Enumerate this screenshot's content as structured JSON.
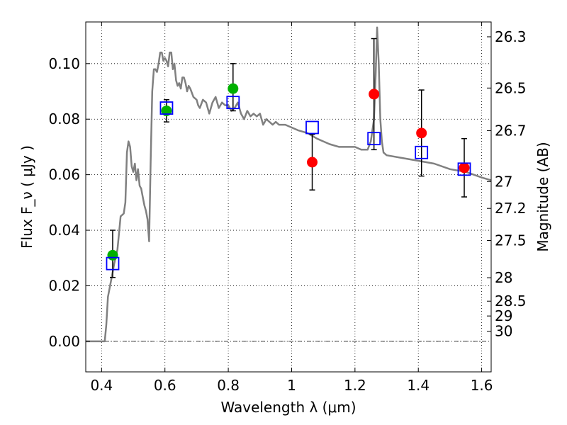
{
  "chart_data": {
    "type": "scatter",
    "xlabel": "Wavelength  λ (μm)",
    "ylabel": "Flux  F_ν  ( μJy )",
    "ylabel_right": "Magnitude (AB)",
    "xlim": [
      0.35,
      1.63
    ],
    "ylim": [
      -0.011,
      0.115
    ],
    "grid": true,
    "x_ticks": [
      {
        "value": 0.4,
        "label": "0.4"
      },
      {
        "value": 0.6,
        "label": "0.6"
      },
      {
        "value": 0.8,
        "label": "0.8"
      },
      {
        "value": 1.0,
        "label": "1"
      },
      {
        "value": 1.2,
        "label": "1.2"
      },
      {
        "value": 1.4,
        "label": "1.4"
      },
      {
        "value": 1.6,
        "label": "1.6"
      }
    ],
    "y_ticks": [
      {
        "value": 0.0,
        "label": "0.00"
      },
      {
        "value": 0.02,
        "label": "0.02"
      },
      {
        "value": 0.04,
        "label": "0.04"
      },
      {
        "value": 0.06,
        "label": "0.06"
      },
      {
        "value": 0.08,
        "label": "0.08"
      },
      {
        "value": 0.1,
        "label": "0.10"
      }
    ],
    "magnitude_ticks": [
      {
        "mag": 26.3,
        "label": "26.3"
      },
      {
        "mag": 26.5,
        "label": "26.5"
      },
      {
        "mag": 26.7,
        "label": "26.7"
      },
      {
        "mag": 27.0,
        "label": "27"
      },
      {
        "mag": 27.2,
        "label": "27.2"
      },
      {
        "mag": 27.5,
        "label": "27.5"
      },
      {
        "mag": 28.0,
        "label": "28"
      },
      {
        "mag": 28.5,
        "label": "28.5"
      },
      {
        "mag": 29.0,
        "label": "29"
      },
      {
        "mag": 30.0,
        "label": "30"
      }
    ],
    "model_spectrum": {
      "color": "#808080",
      "points": [
        [
          0.35,
          0.0
        ],
        [
          0.41,
          0.0
        ],
        [
          0.415,
          0.006
        ],
        [
          0.42,
          0.016
        ],
        [
          0.43,
          0.022
        ],
        [
          0.44,
          0.028
        ],
        [
          0.45,
          0.033
        ],
        [
          0.46,
          0.045
        ],
        [
          0.47,
          0.046
        ],
        [
          0.475,
          0.05
        ],
        [
          0.48,
          0.068
        ],
        [
          0.485,
          0.072
        ],
        [
          0.49,
          0.07
        ],
        [
          0.495,
          0.063
        ],
        [
          0.5,
          0.061
        ],
        [
          0.505,
          0.064
        ],
        [
          0.51,
          0.058
        ],
        [
          0.515,
          0.062
        ],
        [
          0.52,
          0.056
        ],
        [
          0.525,
          0.055
        ],
        [
          0.53,
          0.052
        ],
        [
          0.535,
          0.049
        ],
        [
          0.54,
          0.047
        ],
        [
          0.545,
          0.044
        ],
        [
          0.55,
          0.036
        ],
        [
          0.555,
          0.065
        ],
        [
          0.56,
          0.09
        ],
        [
          0.565,
          0.098
        ],
        [
          0.57,
          0.098
        ],
        [
          0.575,
          0.097
        ],
        [
          0.58,
          0.1
        ],
        [
          0.585,
          0.104
        ],
        [
          0.59,
          0.104
        ],
        [
          0.595,
          0.101
        ],
        [
          0.6,
          0.102
        ],
        [
          0.605,
          0.101
        ],
        [
          0.61,
          0.099
        ],
        [
          0.615,
          0.104
        ],
        [
          0.62,
          0.104
        ],
        [
          0.625,
          0.098
        ],
        [
          0.63,
          0.1
        ],
        [
          0.635,
          0.094
        ],
        [
          0.64,
          0.092
        ],
        [
          0.645,
          0.093
        ],
        [
          0.65,
          0.091
        ],
        [
          0.655,
          0.095
        ],
        [
          0.66,
          0.095
        ],
        [
          0.665,
          0.093
        ],
        [
          0.67,
          0.09
        ],
        [
          0.675,
          0.092
        ],
        [
          0.68,
          0.091
        ],
        [
          0.69,
          0.088
        ],
        [
          0.7,
          0.087
        ],
        [
          0.705,
          0.085
        ],
        [
          0.71,
          0.084
        ],
        [
          0.72,
          0.087
        ],
        [
          0.73,
          0.086
        ],
        [
          0.74,
          0.082
        ],
        [
          0.75,
          0.086
        ],
        [
          0.76,
          0.088
        ],
        [
          0.77,
          0.084
        ],
        [
          0.78,
          0.086
        ],
        [
          0.79,
          0.085
        ],
        [
          0.8,
          0.085
        ],
        [
          0.81,
          0.083
        ],
        [
          0.82,
          0.084
        ],
        [
          0.83,
          0.086
        ],
        [
          0.84,
          0.082
        ],
        [
          0.85,
          0.08
        ],
        [
          0.86,
          0.083
        ],
        [
          0.87,
          0.081
        ],
        [
          0.88,
          0.082
        ],
        [
          0.89,
          0.081
        ],
        [
          0.9,
          0.082
        ],
        [
          0.91,
          0.078
        ],
        [
          0.92,
          0.08
        ],
        [
          0.93,
          0.079
        ],
        [
          0.94,
          0.078
        ],
        [
          0.95,
          0.079
        ],
        [
          0.96,
          0.078
        ],
        [
          0.98,
          0.078
        ],
        [
          1.0,
          0.077
        ],
        [
          1.02,
          0.076
        ],
        [
          1.05,
          0.075
        ],
        [
          1.08,
          0.073
        ],
        [
          1.1,
          0.072
        ],
        [
          1.12,
          0.071
        ],
        [
          1.15,
          0.07
        ],
        [
          1.18,
          0.07
        ],
        [
          1.2,
          0.07
        ],
        [
          1.22,
          0.069
        ],
        [
          1.24,
          0.069
        ],
        [
          1.25,
          0.072
        ],
        [
          1.26,
          0.08
        ],
        [
          1.265,
          0.095
        ],
        [
          1.27,
          0.113
        ],
        [
          1.275,
          0.1
        ],
        [
          1.28,
          0.08
        ],
        [
          1.285,
          0.072
        ],
        [
          1.29,
          0.068
        ],
        [
          1.3,
          0.067
        ],
        [
          1.35,
          0.066
        ],
        [
          1.4,
          0.065
        ],
        [
          1.45,
          0.064
        ],
        [
          1.5,
          0.062
        ],
        [
          1.55,
          0.061
        ],
        [
          1.6,
          0.059
        ],
        [
          1.63,
          0.058
        ]
      ]
    },
    "series": [
      {
        "color": "#00b000",
        "marker": "circle",
        "points": [
          {
            "x": 0.435,
            "y": 0.031,
            "yerr_low": 0.008,
            "yerr_high": 0.009
          },
          {
            "x": 0.605,
            "y": 0.083,
            "yerr_low": 0.004,
            "yerr_high": 0.004
          },
          {
            "x": 0.815,
            "y": 0.091,
            "yerr_low": 0.008,
            "yerr_high": 0.009
          }
        ]
      },
      {
        "color": "#ff0000",
        "marker": "circle",
        "points": [
          {
            "x": 1.065,
            "y": 0.0645,
            "yerr_low": 0.01,
            "yerr_high": 0.01
          },
          {
            "x": 1.26,
            "y": 0.089,
            "yerr_low": 0.02,
            "yerr_high": 0.02
          },
          {
            "x": 1.41,
            "y": 0.075,
            "yerr_low": 0.0155,
            "yerr_high": 0.0155
          },
          {
            "x": 1.545,
            "y": 0.0625,
            "yerr_low": 0.0105,
            "yerr_high": 0.0105
          }
        ]
      },
      {
        "color": "#0000ff",
        "marker": "open-square",
        "points": [
          {
            "x": 0.435,
            "y": 0.028
          },
          {
            "x": 0.605,
            "y": 0.084
          },
          {
            "x": 0.815,
            "y": 0.086
          },
          {
            "x": 1.065,
            "y": 0.077
          },
          {
            "x": 1.26,
            "y": 0.073
          },
          {
            "x": 1.41,
            "y": 0.068
          },
          {
            "x": 1.545,
            "y": 0.062
          }
        ]
      }
    ]
  }
}
